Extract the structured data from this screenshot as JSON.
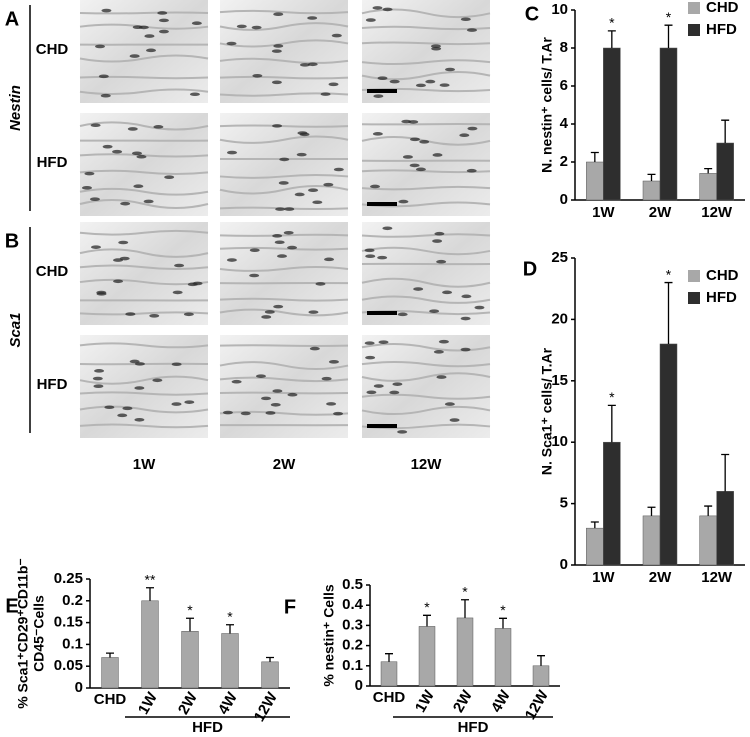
{
  "micrographs": {
    "panels": [
      {
        "letter": "A",
        "marker": "Nestin",
        "rows": [
          "CHD",
          "HFD"
        ]
      },
      {
        "letter": "B",
        "marker": "Sca1",
        "rows": [
          "CHD",
          "HFD"
        ]
      }
    ],
    "columns": [
      "1W",
      "2W",
      "12W"
    ]
  },
  "chart_data": [
    {
      "type": "bar",
      "panel": "C",
      "ylabel": "N. nestin⁺ cells/ T.Ar",
      "categories": [
        "1W",
        "2W",
        "12W"
      ],
      "series": [
        {
          "name": "CHD",
          "color": "#a8a8a8",
          "values": [
            2,
            1,
            1.4
          ],
          "errors": [
            0.5,
            0.35,
            0.25
          ],
          "significance": [
            null,
            null,
            null
          ]
        },
        {
          "name": "HFD",
          "color": "#2e2e2e",
          "values": [
            8,
            8,
            3
          ],
          "errors": [
            0.9,
            1.2,
            1.2
          ],
          "significance": [
            "*",
            "*",
            null
          ]
        }
      ],
      "ylim": [
        0,
        10
      ],
      "yticks": [
        0,
        2,
        4,
        6,
        8,
        10
      ],
      "legend": "upper right"
    },
    {
      "type": "bar",
      "panel": "D",
      "ylabel": "N. Sca1⁺ cells/ T.Ar",
      "categories": [
        "1W",
        "2W",
        "12W"
      ],
      "series": [
        {
          "name": "CHD",
          "color": "#a8a8a8",
          "values": [
            3,
            4,
            4
          ],
          "errors": [
            0.5,
            0.7,
            0.8
          ],
          "significance": [
            null,
            null,
            null
          ]
        },
        {
          "name": "HFD",
          "color": "#2e2e2e",
          "values": [
            10,
            18,
            6
          ],
          "errors": [
            3,
            5,
            3
          ],
          "significance": [
            "*",
            "*",
            null
          ]
        }
      ],
      "ylim": [
        0,
        25
      ],
      "yticks": [
        0,
        5,
        10,
        15,
        20,
        25
      ],
      "legend": "upper right"
    },
    {
      "type": "bar",
      "panel": "E",
      "ylabel": [
        "% Sca1⁺CD29⁺CD11b⁻",
        "CD45⁻Cells"
      ],
      "categories": [
        "CHD",
        "1W",
        "2W",
        "4W",
        "12W"
      ],
      "group_label": "HFD",
      "values": [
        0.07,
        0.2,
        0.13,
        0.125,
        0.06
      ],
      "errors": [
        0.01,
        0.03,
        0.03,
        0.02,
        0.01
      ],
      "significance": [
        null,
        "**",
        "*",
        "*",
        null
      ],
      "color": "#a8a8a8",
      "ylim": [
        0,
        0.25
      ],
      "yticks": [
        0,
        0.05,
        0.1,
        0.15,
        0.2,
        0.25
      ]
    },
    {
      "type": "bar",
      "panel": "F",
      "ylabel": "% nestin⁺ Cells",
      "categories": [
        "CHD",
        "1W",
        "2W",
        "4W",
        "12W"
      ],
      "group_label": "HFD",
      "values": [
        0.12,
        0.295,
        0.337,
        0.285,
        0.1
      ],
      "errors": [
        0.04,
        0.055,
        0.09,
        0.05,
        0.05
      ],
      "significance": [
        null,
        "*",
        "*",
        "*",
        null
      ],
      "color": "#a8a8a8",
      "ylim": [
        0,
        0.5
      ],
      "yticks": [
        0,
        0.1,
        0.2,
        0.3,
        0.4,
        0.5
      ]
    }
  ]
}
